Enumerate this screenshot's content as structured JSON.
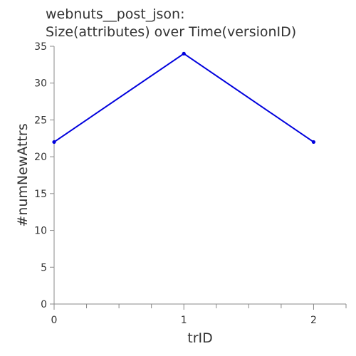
{
  "chart_data": {
    "type": "line",
    "title_lines": [
      "webnuts__post_json:",
      "Size(attributes) over Time(versionID)"
    ],
    "xlabel": "trID",
    "ylabel": "#numNewAttrs",
    "x_ticks": [
      0,
      1,
      2
    ],
    "y_ticks": [
      0,
      5,
      10,
      15,
      20,
      25,
      30,
      35
    ],
    "xlim": [
      0,
      2.25
    ],
    "ylim": [
      0,
      35
    ],
    "series": [
      {
        "x": [
          0,
          1,
          2
        ],
        "y": [
          22,
          34,
          22
        ]
      }
    ],
    "line_color": "#0000dd",
    "grid": false
  }
}
